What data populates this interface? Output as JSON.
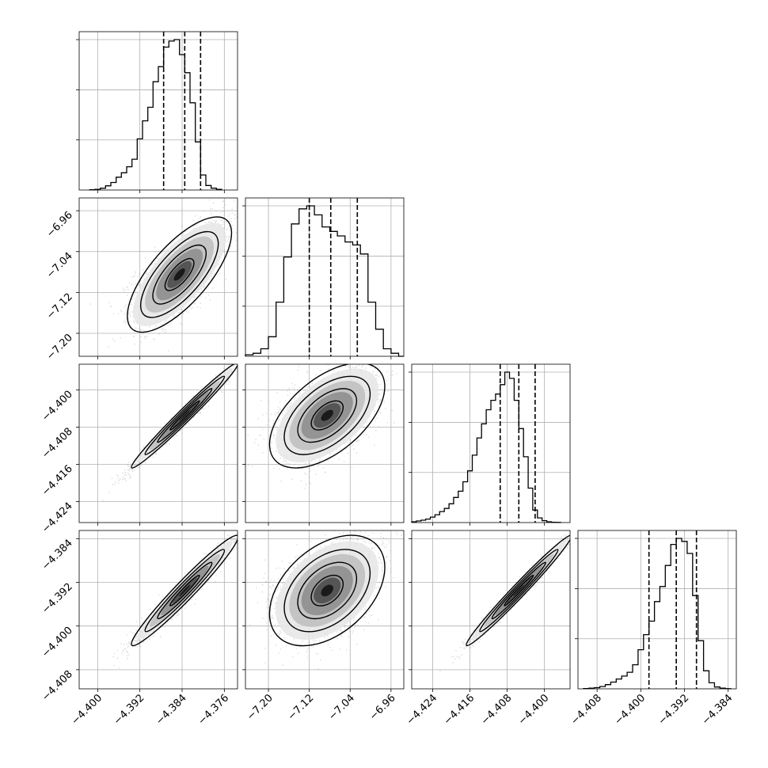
{
  "chart_data": {
    "type": "scatter",
    "kind": "corner",
    "grid": true,
    "parameters": [
      {
        "range": [
          -4.4035,
          -4.3735
        ],
        "ticks": [
          -4.4,
          -4.392,
          -4.384,
          -4.376
        ],
        "tick_labels": [
          "−4.400",
          "−4.392",
          "−4.384",
          "−4.376"
        ],
        "quantiles": [
          -4.3875,
          -4.3835,
          -4.3805
        ],
        "hist": {
          "bins": [
            -4.4015,
            -4.4005,
            -4.3995,
            -4.3985,
            -4.3975,
            -4.3965,
            -4.3955,
            -4.3945,
            -4.3935,
            -4.3925,
            -4.3915,
            -4.3905,
            -4.3895,
            -4.3885,
            -4.3875,
            -4.3865,
            -4.3855,
            -4.3845,
            -4.3835,
            -4.3825,
            -4.3815,
            -4.3805,
            -4.3795,
            -4.3785,
            -4.3775,
            -4.3765
          ],
          "counts": [
            0.002,
            0.005,
            0.012,
            0.028,
            0.05,
            0.085,
            0.115,
            0.155,
            0.205,
            0.34,
            0.46,
            0.55,
            0.72,
            0.82,
            0.95,
            0.99,
            1.0,
            0.9,
            0.78,
            0.58,
            0.32,
            0.1,
            0.03,
            0.012,
            0.004
          ]
        }
      },
      {
        "range": [
          -7.245,
          -6.935
        ],
        "ticks": [
          -7.2,
          -7.12,
          -7.04,
          -6.96
        ],
        "tick_labels": [
          "−7.20",
          "−7.12",
          "−7.04",
          "−6.96"
        ],
        "quantiles": [
          -7.12,
          -7.078,
          -7.026
        ],
        "hist": {
          "bins": [
            -7.245,
            -7.23,
            -7.215,
            -7.2,
            -7.185,
            -7.17,
            -7.155,
            -7.14,
            -7.125,
            -7.11,
            -7.095,
            -7.08,
            -7.065,
            -7.05,
            -7.035,
            -7.02,
            -7.005,
            -6.99,
            -6.975,
            -6.96,
            -6.945,
            -6.935
          ],
          "counts": [
            0.01,
            0.02,
            0.05,
            0.13,
            0.36,
            0.66,
            0.88,
            0.98,
            1.0,
            0.94,
            0.86,
            0.83,
            0.8,
            0.76,
            0.74,
            0.68,
            0.36,
            0.18,
            0.05,
            0.02,
            0.0
          ]
        }
      },
      {
        "range": [
          -4.4285,
          -4.3945
        ],
        "ticks": [
          -4.424,
          -4.416,
          -4.408,
          -4.4
        ],
        "tick_labels": [
          "−4.424",
          "−4.416",
          "−4.408",
          "−4.400"
        ],
        "quantiles": [
          -4.4095,
          -4.4055,
          -4.402
        ],
        "hist": {
          "bins": [
            -4.4285,
            -4.4275,
            -4.4265,
            -4.4255,
            -4.4245,
            -4.4235,
            -4.4225,
            -4.4215,
            -4.4205,
            -4.4195,
            -4.4185,
            -4.4175,
            -4.4165,
            -4.4155,
            -4.4145,
            -4.4135,
            -4.4125,
            -4.4115,
            -4.4105,
            -4.4095,
            -4.4085,
            -4.4075,
            -4.4065,
            -4.4055,
            -4.4045,
            -4.4035,
            -4.4025,
            -4.4015,
            -4.4005,
            -4.3995,
            -4.3985,
            -4.3975,
            -4.3965
          ],
          "counts": [
            0.005,
            0.01,
            0.015,
            0.022,
            0.035,
            0.05,
            0.07,
            0.09,
            0.12,
            0.16,
            0.2,
            0.26,
            0.33,
            0.43,
            0.54,
            0.63,
            0.72,
            0.78,
            0.82,
            0.88,
            0.96,
            0.92,
            0.78,
            0.6,
            0.42,
            0.22,
            0.08,
            0.03,
            0.012,
            0.005,
            0.002,
            0.001
          ]
        }
      },
      {
        "range": [
          -4.4115,
          -4.3825
        ],
        "ticks": [
          -4.408,
          -4.4,
          -4.392,
          -4.384
        ],
        "tick_labels": [
          "−4.408",
          "−4.400",
          "−4.392",
          "−4.384"
        ],
        "quantiles": [
          -4.3985,
          -4.3935,
          -4.3898
        ],
        "hist": {
          "bins": [
            -4.4105,
            -4.4095,
            -4.4085,
            -4.4075,
            -4.4065,
            -4.4055,
            -4.4045,
            -4.4035,
            -4.4025,
            -4.4015,
            -4.4005,
            -4.3995,
            -4.3985,
            -4.3975,
            -4.3965,
            -4.3955,
            -4.3945,
            -4.3935,
            -4.3925,
            -4.3915,
            -4.3905,
            -4.3895,
            -4.3885,
            -4.3875,
            -4.3865,
            -4.3855,
            -4.3845,
            -4.3835
          ],
          "counts": [
            0.002,
            0.004,
            0.008,
            0.015,
            0.028,
            0.045,
            0.065,
            0.085,
            0.11,
            0.16,
            0.26,
            0.36,
            0.45,
            0.58,
            0.68,
            0.82,
            0.96,
            1.0,
            0.98,
            0.9,
            0.62,
            0.32,
            0.12,
            0.04,
            0.012,
            0.004,
            0.001
          ]
        }
      }
    ],
    "pairs": [
      {
        "row": 1,
        "col": 0,
        "center": [
          -4.3845,
          -7.085
        ],
        "sd": [
          0.0042,
          0.048
        ],
        "rho": 0.72,
        "spread": 1.6
      },
      {
        "row": 2,
        "col": 0,
        "center": [
          -4.3835,
          -4.4055
        ],
        "sd": [
          0.0043,
          0.0048
        ],
        "rho": 0.985,
        "spread": 1.3
      },
      {
        "row": 2,
        "col": 1,
        "center": [
          -7.085,
          -4.4055
        ],
        "sd": [
          0.048,
          0.0048
        ],
        "rho": 0.55,
        "spread": 1.6
      },
      {
        "row": 3,
        "col": 0,
        "center": [
          -4.3835,
          -4.3935
        ],
        "sd": [
          0.0043,
          0.0043
        ],
        "rho": 0.97,
        "spread": 1.3
      },
      {
        "row": 3,
        "col": 1,
        "center": [
          -7.085,
          -4.3935
        ],
        "sd": [
          0.048,
          0.0043
        ],
        "rho": 0.42,
        "spread": 1.6
      },
      {
        "row": 3,
        "col": 2,
        "center": [
          -4.4055,
          -4.3935
        ],
        "sd": [
          0.0048,
          0.0043
        ],
        "rho": 0.985,
        "spread": 1.3
      }
    ]
  }
}
